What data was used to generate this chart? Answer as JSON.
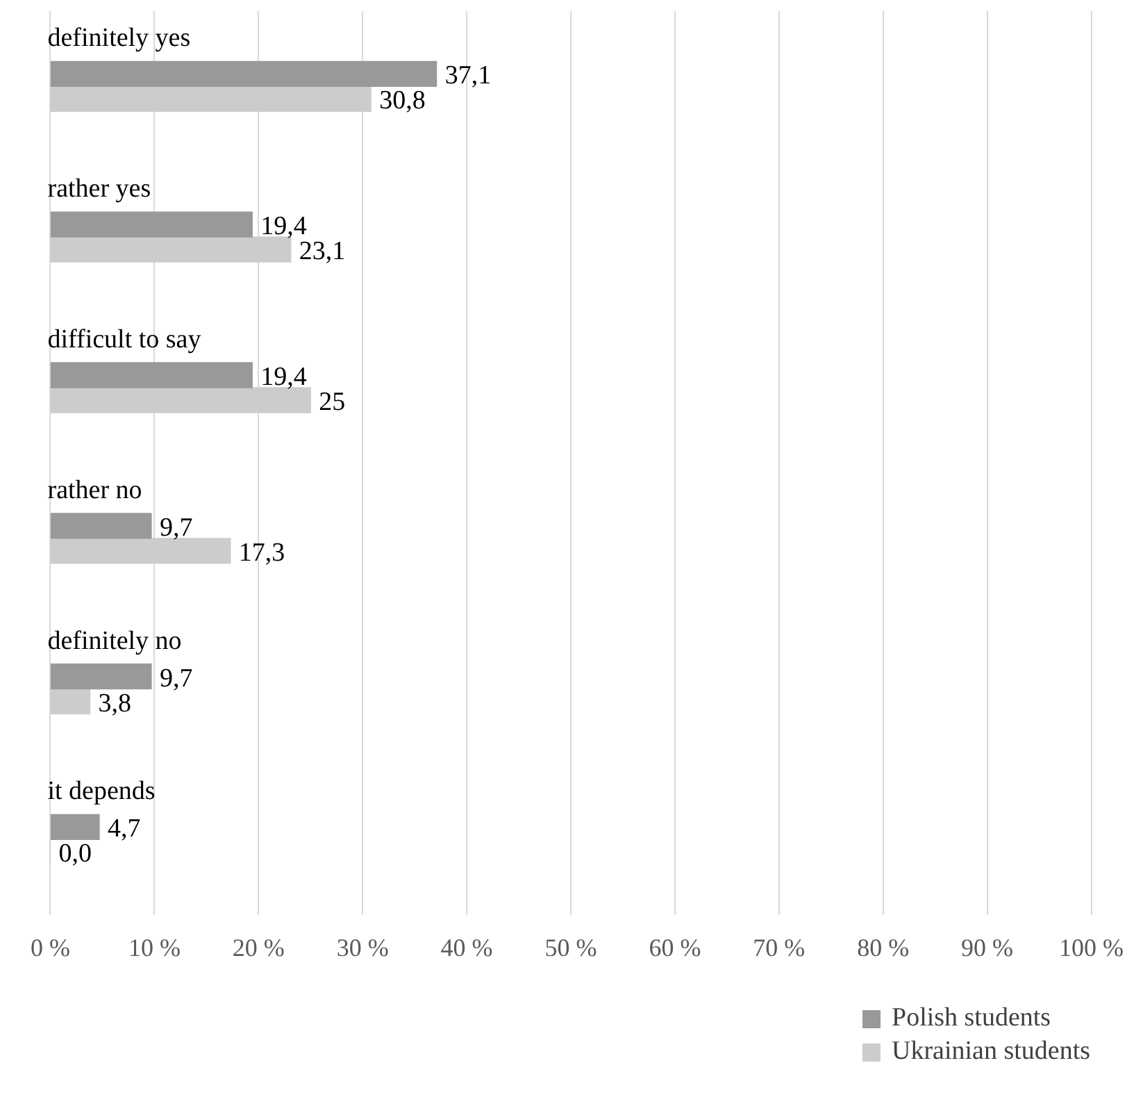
{
  "chart_data": {
    "type": "bar",
    "orientation": "horizontal",
    "categories": [
      "definitely yes",
      "rather yes",
      "difficult to say",
      "rather no",
      "definitely no",
      "it depends"
    ],
    "series": [
      {
        "name": "Polish students",
        "color": "#999999",
        "values": [
          37.1,
          19.4,
          19.4,
          9.7,
          9.7,
          4.7
        ],
        "value_labels": [
          "37,1",
          "19,4",
          "19,4",
          "9,7",
          "9,7",
          "4,7"
        ]
      },
      {
        "name": "Ukrainian students",
        "color": "#cccccc",
        "values": [
          30.8,
          23.1,
          25,
          17.3,
          3.8,
          0
        ],
        "value_labels": [
          "30,8",
          "23,1",
          "25",
          "17,3",
          "3,8",
          "0,0"
        ]
      }
    ],
    "xlim": [
      0,
      100
    ],
    "xticks": [
      {
        "value": 0,
        "label": "0 %"
      },
      {
        "value": 10,
        "label": "10 %"
      },
      {
        "value": 20,
        "label": "20 %"
      },
      {
        "value": 30,
        "label": "30 %"
      },
      {
        "value": 40,
        "label": "40 %"
      },
      {
        "value": 50,
        "label": "50 %"
      },
      {
        "value": 60,
        "label": "60 %"
      },
      {
        "value": 70,
        "label": "70 %"
      },
      {
        "value": 80,
        "label": "80 %"
      },
      {
        "value": 90,
        "label": "90 %"
      },
      {
        "value": 100,
        "label": "100 %"
      }
    ],
    "grid": "x",
    "legend": "bottom right"
  }
}
